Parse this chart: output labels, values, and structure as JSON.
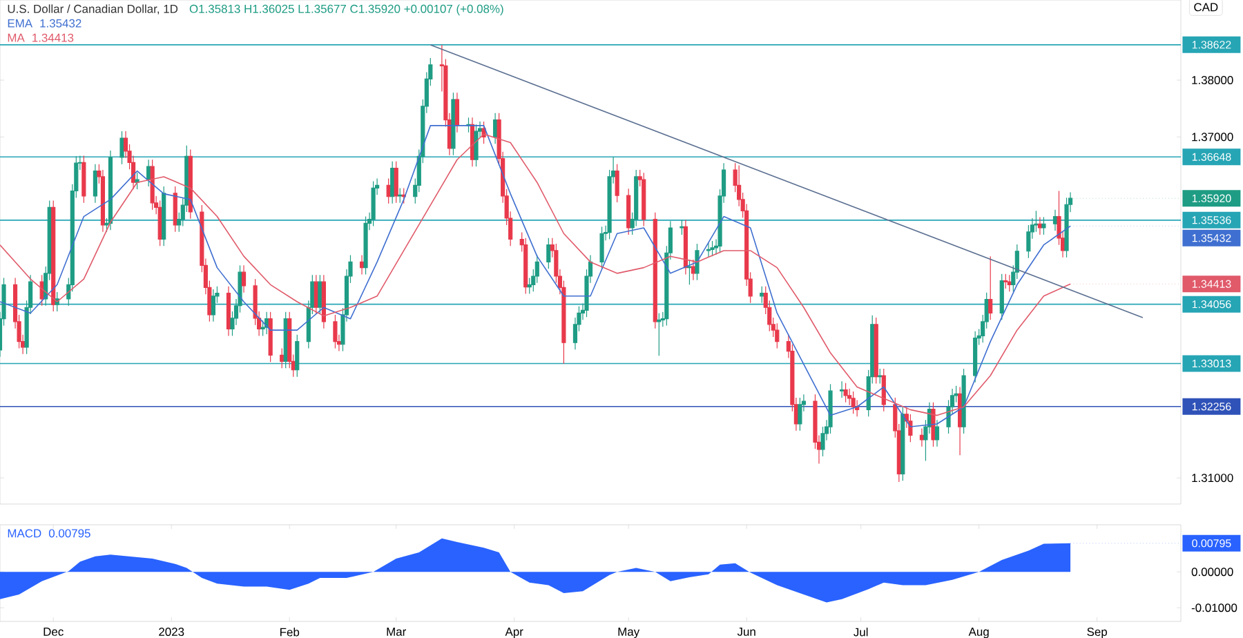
{
  "chart_data": [
    {
      "type": "candlestick",
      "title": "U.S. Dollar / Canadian Dollar, 1D",
      "subtitle": "O1.35813 H1.36025 L1.35677 C1.35920 +0.00107 (+0.08%)",
      "ylabel": "CAD",
      "legend": "top left",
      "tick_labels": "y",
      "xlim": [
        "2022-11-17",
        "2023-09-23"
      ],
      "ylim": [
        1.3054,
        1.3941
      ],
      "yticks": [
        {
          "value": 1.31,
          "label": "1.31000"
        },
        {
          "value": 1.37,
          "label": "1.37000"
        },
        {
          "value": 1.38,
          "label": "1.38000"
        }
      ],
      "x": [
        "2022-11-17",
        "2022-11-18",
        "2022-11-21",
        "2022-11-22",
        "2022-11-23",
        "2022-11-24",
        "2022-11-25",
        "2022-11-28",
        "2022-11-29",
        "2022-11-30",
        "2022-12-01",
        "2022-12-02",
        "2022-12-05",
        "2022-12-06",
        "2022-12-07",
        "2022-12-08",
        "2022-12-09",
        "2022-12-12",
        "2022-12-13",
        "2022-12-14",
        "2022-12-15",
        "2022-12-16",
        "2022-12-19",
        "2022-12-20",
        "2022-12-21",
        "2022-12-22",
        "2022-12-23",
        "2022-12-26",
        "2022-12-27",
        "2022-12-28",
        "2022-12-29",
        "2022-12-30",
        "2023-01-02",
        "2023-01-03",
        "2023-01-04",
        "2023-01-05",
        "2023-01-06",
        "2023-01-09",
        "2023-01-10",
        "2023-01-11",
        "2023-01-12",
        "2023-01-13",
        "2023-01-16",
        "2023-01-17",
        "2023-01-18",
        "2023-01-19",
        "2023-01-20",
        "2023-01-23",
        "2023-01-24",
        "2023-01-25",
        "2023-01-26",
        "2023-01-27",
        "2023-01-30",
        "2023-01-31",
        "2023-02-01",
        "2023-02-02",
        "2023-02-03",
        "2023-02-06",
        "2023-02-07",
        "2023-02-08",
        "2023-02-09",
        "2023-02-10",
        "2023-02-13",
        "2023-02-14",
        "2023-02-15",
        "2023-02-16",
        "2023-02-17",
        "2023-02-20",
        "2023-02-21",
        "2023-02-22",
        "2023-02-23",
        "2023-02-24",
        "2023-02-27",
        "2023-02-28",
        "2023-03-01",
        "2023-03-02",
        "2023-03-03",
        "2023-03-06",
        "2023-03-07",
        "2023-03-08",
        "2023-03-09",
        "2023-03-10",
        "2023-03-13",
        "2023-03-14",
        "2023-03-15",
        "2023-03-16",
        "2023-03-17",
        "2023-03-20",
        "2023-03-21",
        "2023-03-22",
        "2023-03-23",
        "2023-03-24",
        "2023-03-27",
        "2023-03-28",
        "2023-03-29",
        "2023-03-30",
        "2023-03-31",
        "2023-04-03",
        "2023-04-04",
        "2023-04-05",
        "2023-04-06",
        "2023-04-07",
        "2023-04-10",
        "2023-04-11",
        "2023-04-12",
        "2023-04-13",
        "2023-04-14",
        "2023-04-17",
        "2023-04-18",
        "2023-04-19",
        "2023-04-20",
        "2023-04-21",
        "2023-04-24",
        "2023-04-25",
        "2023-04-26",
        "2023-04-27",
        "2023-04-28",
        "2023-05-01",
        "2023-05-02",
        "2023-05-03",
        "2023-05-04",
        "2023-05-05",
        "2023-05-08",
        "2023-05-09",
        "2023-05-10",
        "2023-05-11",
        "2023-05-12",
        "2023-05-15",
        "2023-05-16",
        "2023-05-17",
        "2023-05-18",
        "2023-05-19",
        "2023-05-22",
        "2023-05-23",
        "2023-05-24",
        "2023-05-25",
        "2023-05-26",
        "2023-05-29",
        "2023-05-30",
        "2023-05-31",
        "2023-06-01",
        "2023-06-02",
        "2023-06-05",
        "2023-06-06",
        "2023-06-07",
        "2023-06-08",
        "2023-06-09",
        "2023-06-12",
        "2023-06-13",
        "2023-06-14",
        "2023-06-15",
        "2023-06-16",
        "2023-06-19",
        "2023-06-20",
        "2023-06-21",
        "2023-06-22",
        "2023-06-23",
        "2023-06-26",
        "2023-06-27",
        "2023-06-28",
        "2023-06-29",
        "2023-06-30",
        "2023-07-03",
        "2023-07-04",
        "2023-07-05",
        "2023-07-06",
        "2023-07-07",
        "2023-07-10",
        "2023-07-11",
        "2023-07-12",
        "2023-07-13",
        "2023-07-14",
        "2023-07-17",
        "2023-07-18",
        "2023-07-19",
        "2023-07-20",
        "2023-07-21",
        "2023-07-24",
        "2023-07-25",
        "2023-07-26",
        "2023-07-27",
        "2023-07-28",
        "2023-07-31",
        "2023-08-01",
        "2023-08-02",
        "2023-08-03",
        "2023-08-04",
        "2023-08-07",
        "2023-08-08",
        "2023-08-09",
        "2023-08-10",
        "2023-08-11",
        "2023-08-14",
        "2023-08-15",
        "2023-08-16",
        "2023-08-17",
        "2023-08-18",
        "2023-08-21",
        "2023-08-22",
        "2023-08-23",
        "2023-08-24",
        "2023-08-25"
      ],
      "ohlc": [
        [
          1.3325,
          1.3392,
          1.3313,
          1.338
        ],
        [
          1.338,
          1.3452,
          1.3368,
          1.344
        ],
        [
          1.344,
          1.3452,
          1.3363,
          1.3375
        ],
        [
          1.3375,
          1.3387,
          1.3328,
          1.334
        ],
        [
          1.334,
          1.3352,
          1.3318,
          1.333
        ],
        [
          1.333,
          1.3412,
          1.3318,
          1.34
        ],
        [
          1.34,
          1.3457,
          1.3388,
          1.3445
        ],
        [
          1.3445,
          1.3457,
          1.3403,
          1.3415
        ],
        [
          1.3415,
          1.3472,
          1.3403,
          1.346
        ],
        [
          1.346,
          1.3588,
          1.3448,
          1.3576
        ],
        [
          1.3576,
          1.3588,
          1.3393,
          1.3405
        ],
        [
          1.3405,
          1.3427,
          1.3393,
          1.3415
        ],
        [
          1.3415,
          1.3452,
          1.3403,
          1.344
        ],
        [
          1.344,
          1.3617,
          1.3428,
          1.3605
        ],
        [
          1.3605,
          1.3666,
          1.3593,
          1.3654
        ],
        [
          1.3654,
          1.3667,
          1.3642,
          1.3655
        ],
        [
          1.3655,
          1.3667,
          1.3584,
          1.3596
        ],
        [
          1.3596,
          1.3652,
          1.3584,
          1.364
        ],
        [
          1.364,
          1.3652,
          1.3618,
          1.363
        ],
        [
          1.363,
          1.3642,
          1.3533,
          1.3545
        ],
        [
          1.3545,
          1.3557,
          1.3533,
          1.3548
        ],
        [
          1.3548,
          1.3676,
          1.3536,
          1.3664
        ],
        [
          1.3664,
          1.371,
          1.3652,
          1.3698
        ],
        [
          1.3698,
          1.371,
          1.3663,
          1.3675
        ],
        [
          1.3675,
          1.3687,
          1.3643,
          1.3655
        ],
        [
          1.3655,
          1.3667,
          1.3608,
          1.362
        ],
        [
          1.362,
          1.3637,
          1.3608,
          1.3625
        ],
        [
          1.3625,
          1.366,
          1.3613,
          1.3648
        ],
        [
          1.3648,
          1.366,
          1.3572,
          1.3584
        ],
        [
          1.3584,
          1.3596,
          1.3564,
          1.3576
        ],
        [
          1.3576,
          1.3588,
          1.3508,
          1.352
        ],
        [
          1.352,
          1.3613,
          1.3508,
          1.3601
        ],
        [
          1.3601,
          1.3613,
          1.3533,
          1.3545
        ],
        [
          1.3545,
          1.3567,
          1.3533,
          1.3555
        ],
        [
          1.3555,
          1.3592,
          1.3543,
          1.358
        ],
        [
          1.358,
          1.3685,
          1.3568,
          1.3666
        ],
        [
          1.3666,
          1.3678,
          1.3556,
          1.3568
        ],
        [
          1.3568,
          1.358,
          1.3462,
          1.3474
        ],
        [
          1.3474,
          1.3486,
          1.3423,
          1.3435
        ],
        [
          1.3435,
          1.3447,
          1.3375,
          1.3387
        ],
        [
          1.3387,
          1.3432,
          1.3375,
          1.342
        ],
        [
          1.342,
          1.3437,
          1.3408,
          1.3425
        ],
        [
          1.3425,
          1.3437,
          1.335,
          1.3362
        ],
        [
          1.3362,
          1.3393,
          1.335,
          1.3381
        ],
        [
          1.3381,
          1.3415,
          1.3369,
          1.3403
        ],
        [
          1.3403,
          1.3474,
          1.3391,
          1.3462
        ],
        [
          1.3462,
          1.3474,
          1.3426,
          1.3438
        ],
        [
          1.3438,
          1.345,
          1.3369,
          1.3381
        ],
        [
          1.3381,
          1.3393,
          1.335,
          1.3362
        ],
        [
          1.3362,
          1.3377,
          1.335,
          1.3365
        ],
        [
          1.3365,
          1.3392,
          1.3353,
          1.338
        ],
        [
          1.338,
          1.3392,
          1.3304,
          1.3316
        ],
        [
          1.3316,
          1.3328,
          1.3293,
          1.3305
        ],
        [
          1.3305,
          1.3392,
          1.3293,
          1.338
        ],
        [
          1.338,
          1.3392,
          1.3293,
          1.3305
        ],
        [
          1.3305,
          1.3317,
          1.3278,
          1.329
        ],
        [
          1.329,
          1.3352,
          1.3278,
          1.334
        ],
        [
          1.334,
          1.3412,
          1.3328,
          1.34
        ],
        [
          1.34,
          1.3457,
          1.3388,
          1.3445
        ],
        [
          1.3445,
          1.3457,
          1.3388,
          1.34
        ],
        [
          1.34,
          1.3457,
          1.3388,
          1.3445
        ],
        [
          1.3445,
          1.3457,
          1.3363,
          1.3375
        ],
        [
          1.3375,
          1.3387,
          1.3328,
          1.334
        ],
        [
          1.334,
          1.3352,
          1.3323,
          1.3335
        ],
        [
          1.3335,
          1.3399,
          1.3323,
          1.3387
        ],
        [
          1.3387,
          1.3467,
          1.3375,
          1.3455
        ],
        [
          1.3455,
          1.3492,
          1.3443,
          1.348
        ],
        [
          1.348,
          1.3492,
          1.3458,
          1.347
        ],
        [
          1.347,
          1.356,
          1.3458,
          1.3548
        ],
        [
          1.3548,
          1.3567,
          1.3536,
          1.3555
        ],
        [
          1.3555,
          1.3622,
          1.3543,
          1.361
        ],
        [
          1.361,
          1.3627,
          1.3598,
          1.3615
        ],
        [
          1.3615,
          1.3627,
          1.3583,
          1.3595
        ],
        [
          1.3595,
          1.3657,
          1.3583,
          1.3645
        ],
        [
          1.3645,
          1.3657,
          1.3584,
          1.3596
        ],
        [
          1.3596,
          1.361,
          1.3584,
          1.3598
        ],
        [
          1.3598,
          1.361,
          1.3583,
          1.3595
        ],
        [
          1.3595,
          1.3627,
          1.3583,
          1.3615
        ],
        [
          1.3615,
          1.3678,
          1.3603,
          1.3666
        ],
        [
          1.3666,
          1.3766,
          1.3654,
          1.3754
        ],
        [
          1.3754,
          1.3814,
          1.3742,
          1.3802
        ],
        [
          1.3802,
          1.3839,
          1.379,
          1.3827
        ],
        [
          1.3827,
          1.3862,
          1.378,
          1.3825
        ],
        [
          1.3825,
          1.3837,
          1.3718,
          1.373
        ],
        [
          1.373,
          1.3742,
          1.3668,
          1.368
        ],
        [
          1.368,
          1.3778,
          1.3668,
          1.3766
        ],
        [
          1.3766,
          1.3778,
          1.3708,
          1.372
        ],
        [
          1.372,
          1.3734,
          1.3708,
          1.3722
        ],
        [
          1.3722,
          1.3734,
          1.3648,
          1.366
        ],
        [
          1.366,
          1.3722,
          1.3648,
          1.371
        ],
        [
          1.371,
          1.3727,
          1.3698,
          1.3715
        ],
        [
          1.3715,
          1.3727,
          1.3688,
          1.37
        ],
        [
          1.37,
          1.3742,
          1.3688,
          1.373
        ],
        [
          1.373,
          1.3742,
          1.365,
          1.3662
        ],
        [
          1.3662,
          1.3674,
          1.3584,
          1.3596
        ],
        [
          1.3596,
          1.3608,
          1.3545,
          1.3557
        ],
        [
          1.3557,
          1.3569,
          1.3508,
          1.352
        ],
        [
          1.352,
          1.3532,
          1.3498,
          1.351
        ],
        [
          1.351,
          1.3522,
          1.3424,
          1.3436
        ],
        [
          1.3436,
          1.3452,
          1.3424,
          1.344
        ],
        [
          1.344,
          1.3467,
          1.3428,
          1.3455
        ],
        [
          1.3455,
          1.3492,
          1.3443,
          1.348
        ],
        [
          1.348,
          1.3522,
          1.3468,
          1.351
        ],
        [
          1.351,
          1.3522,
          1.3488,
          1.35
        ],
        [
          1.35,
          1.3512,
          1.3443,
          1.3455
        ],
        [
          1.3455,
          1.3467,
          1.3423,
          1.3435
        ],
        [
          1.3435,
          1.3447,
          1.3301,
          1.3338
        ],
        [
          1.3338,
          1.3382,
          1.3326,
          1.337
        ],
        [
          1.337,
          1.3402,
          1.3358,
          1.339
        ],
        [
          1.339,
          1.3407,
          1.3378,
          1.3395
        ],
        [
          1.3395,
          1.3467,
          1.3383,
          1.3455
        ],
        [
          1.3455,
          1.3492,
          1.3443,
          1.348
        ],
        [
          1.348,
          1.3542,
          1.3468,
          1.353
        ],
        [
          1.353,
          1.3544,
          1.3518,
          1.3532
        ],
        [
          1.3532,
          1.3642,
          1.352,
          1.363
        ],
        [
          1.363,
          1.3665,
          1.3618,
          1.364
        ],
        [
          1.364,
          1.3652,
          1.3585,
          1.3597
        ],
        [
          1.3597,
          1.3609,
          1.3528,
          1.354
        ],
        [
          1.354,
          1.3567,
          1.3528,
          1.3555
        ],
        [
          1.3555,
          1.3642,
          1.3543,
          1.363
        ],
        [
          1.363,
          1.3642,
          1.3613,
          1.3625
        ],
        [
          1.3625,
          1.3637,
          1.3543,
          1.3555
        ],
        [
          1.3555,
          1.3567,
          1.3363,
          1.3375
        ],
        [
          1.3375,
          1.339,
          1.3315,
          1.3378
        ],
        [
          1.3378,
          1.3392,
          1.3366,
          1.338
        ],
        [
          1.338,
          1.3508,
          1.3368,
          1.3496
        ],
        [
          1.3496,
          1.3552,
          1.3484,
          1.354
        ],
        [
          1.354,
          1.3554,
          1.3528,
          1.3542
        ],
        [
          1.3542,
          1.3554,
          1.3458,
          1.347
        ],
        [
          1.347,
          1.3484,
          1.344,
          1.3472
        ],
        [
          1.3472,
          1.3484,
          1.3448,
          1.346
        ],
        [
          1.346,
          1.3512,
          1.3448,
          1.35
        ],
        [
          1.35,
          1.3514,
          1.3488,
          1.3502
        ],
        [
          1.3502,
          1.3517,
          1.349,
          1.3505
        ],
        [
          1.3505,
          1.352,
          1.3493,
          1.3508
        ],
        [
          1.3508,
          1.3608,
          1.3496,
          1.3596
        ],
        [
          1.3596,
          1.3654,
          1.3584,
          1.3642
        ],
        [
          1.3642,
          1.3654,
          1.3603,
          1.3615
        ],
        [
          1.3615,
          1.365,
          1.3578,
          1.359
        ],
        [
          1.359,
          1.3602,
          1.3558,
          1.357
        ],
        [
          1.357,
          1.3582,
          1.3438,
          1.345
        ],
        [
          1.345,
          1.3462,
          1.3408,
          1.342
        ],
        [
          1.342,
          1.3437,
          1.3408,
          1.3425
        ],
        [
          1.3425,
          1.3437,
          1.3388,
          1.34
        ],
        [
          1.34,
          1.3412,
          1.3358,
          1.337
        ],
        [
          1.337,
          1.3382,
          1.3348,
          1.336
        ],
        [
          1.336,
          1.3372,
          1.3328,
          1.334
        ],
        [
          1.334,
          1.3352,
          1.3311,
          1.3323
        ],
        [
          1.3323,
          1.3335,
          1.3217,
          1.3229
        ],
        [
          1.3229,
          1.3241,
          1.3183,
          1.3195
        ],
        [
          1.3195,
          1.3241,
          1.3183,
          1.3229
        ],
        [
          1.3229,
          1.3247,
          1.3217,
          1.3235
        ],
        [
          1.3235,
          1.3247,
          1.3151,
          1.3163
        ],
        [
          1.3163,
          1.3175,
          1.3125,
          1.315
        ],
        [
          1.315,
          1.319,
          1.3138,
          1.3178
        ],
        [
          1.3178,
          1.3202,
          1.3166,
          1.319
        ],
        [
          1.319,
          1.3265,
          1.3178,
          1.3253
        ],
        [
          1.3253,
          1.327,
          1.3241,
          1.3255
        ],
        [
          1.3255,
          1.3267,
          1.3233,
          1.3245
        ],
        [
          1.3245,
          1.3257,
          1.3228,
          1.324
        ],
        [
          1.324,
          1.3252,
          1.3213,
          1.3225
        ],
        [
          1.3225,
          1.3237,
          1.3208,
          1.322
        ],
        [
          1.322,
          1.329,
          1.3208,
          1.3278
        ],
        [
          1.3278,
          1.3386,
          1.3266,
          1.337
        ],
        [
          1.337,
          1.3382,
          1.3266,
          1.3278
        ],
        [
          1.3278,
          1.3292,
          1.3266,
          1.328
        ],
        [
          1.328,
          1.3292,
          1.3217,
          1.3229
        ],
        [
          1.3229,
          1.3241,
          1.3171,
          1.3183
        ],
        [
          1.3183,
          1.3195,
          1.3093,
          1.3107
        ],
        [
          1.3107,
          1.3224,
          1.3095,
          1.3212
        ],
        [
          1.3212,
          1.3224,
          1.3188,
          1.32
        ],
        [
          1.32,
          1.3212,
          1.3163,
          1.3175
        ],
        [
          1.3175,
          1.3187,
          1.3155,
          1.3167
        ],
        [
          1.3167,
          1.3202,
          1.313,
          1.319
        ],
        [
          1.319,
          1.3233,
          1.3178,
          1.3221
        ],
        [
          1.3221,
          1.3233,
          1.3155,
          1.3167
        ],
        [
          1.3167,
          1.3202,
          1.3155,
          1.319
        ],
        [
          1.319,
          1.3237,
          1.3178,
          1.3225
        ],
        [
          1.3225,
          1.3257,
          1.3213,
          1.3245
        ],
        [
          1.3245,
          1.3262,
          1.3233,
          1.3248
        ],
        [
          1.3248,
          1.326,
          1.314,
          1.319
        ],
        [
          1.319,
          1.3292,
          1.3178,
          1.328
        ],
        [
          1.328,
          1.3358,
          1.3268,
          1.3346
        ],
        [
          1.3346,
          1.3362,
          1.3334,
          1.335
        ],
        [
          1.335,
          1.3387,
          1.3338,
          1.3375
        ],
        [
          1.3375,
          1.3426,
          1.3363,
          1.3414
        ],
        [
          1.3414,
          1.349,
          1.3378,
          1.339
        ],
        [
          1.339,
          1.3459,
          1.3378,
          1.3447
        ],
        [
          1.3447,
          1.3459,
          1.3433,
          1.3445
        ],
        [
          1.3445,
          1.3457,
          1.3428,
          1.344
        ],
        [
          1.344,
          1.3474,
          1.3428,
          1.3462
        ],
        [
          1.3462,
          1.3511,
          1.345,
          1.3499
        ],
        [
          1.3499,
          1.3545,
          1.3487,
          1.3533
        ],
        [
          1.3533,
          1.3557,
          1.3521,
          1.3545
        ],
        [
          1.3545,
          1.357,
          1.3533,
          1.3547
        ],
        [
          1.3547,
          1.3559,
          1.3528,
          1.354
        ],
        [
          1.354,
          1.3559,
          1.3528,
          1.3547
        ],
        [
          1.3547,
          1.3572,
          1.3535,
          1.356
        ],
        [
          1.356,
          1.3605,
          1.351,
          1.3522
        ],
        [
          1.3522,
          1.3534,
          1.3488,
          1.35
        ],
        [
          1.35,
          1.3593,
          1.3488,
          1.3581
        ],
        [
          1.35813,
          1.36025,
          1.35677,
          1.3592
        ]
      ],
      "series": [
        {
          "type": "line",
          "name": "EMA",
          "color": "#3f6fd0",
          "x": [
            "2022-11-17",
            "2022-11-25",
            "2022-12-02",
            "2022-12-09",
            "2022-12-16",
            "2022-12-23",
            "2022-12-30",
            "2023-01-06",
            "2023-01-13",
            "2023-01-20",
            "2023-01-27",
            "2023-02-03",
            "2023-02-10",
            "2023-02-17",
            "2023-02-24",
            "2023-03-03",
            "2023-03-10",
            "2023-03-17",
            "2023-03-24",
            "2023-03-31",
            "2023-04-07",
            "2023-04-14",
            "2023-04-21",
            "2023-04-28",
            "2023-05-05",
            "2023-05-12",
            "2023-05-19",
            "2023-05-26",
            "2023-06-02",
            "2023-06-09",
            "2023-06-16",
            "2023-06-23",
            "2023-06-30",
            "2023-07-07",
            "2023-07-14",
            "2023-07-21",
            "2023-07-28",
            "2023-08-04",
            "2023-08-11",
            "2023-08-18",
            "2023-08-25"
          ],
          "values": [
            1.341,
            1.339,
            1.344,
            1.356,
            1.359,
            1.364,
            1.36,
            1.359,
            1.347,
            1.341,
            1.336,
            1.336,
            1.34,
            1.338,
            1.348,
            1.359,
            1.372,
            1.372,
            1.372,
            1.36,
            1.349,
            1.342,
            1.342,
            1.353,
            1.354,
            1.346,
            1.348,
            1.356,
            1.354,
            1.339,
            1.33,
            1.321,
            1.3225,
            1.326,
            1.319,
            1.3195,
            1.3225,
            1.334,
            1.344,
            1.351,
            1.35432
          ]
        },
        {
          "type": "line",
          "name": "MA",
          "color": "#e05a6a",
          "x": [
            "2022-11-17",
            "2022-11-25",
            "2022-12-02",
            "2022-12-09",
            "2022-12-16",
            "2022-12-23",
            "2022-12-30",
            "2023-01-06",
            "2023-01-13",
            "2023-01-20",
            "2023-01-27",
            "2023-02-03",
            "2023-02-10",
            "2023-02-17",
            "2023-02-24",
            "2023-03-03",
            "2023-03-10",
            "2023-03-17",
            "2023-03-24",
            "2023-03-31",
            "2023-04-07",
            "2023-04-14",
            "2023-04-21",
            "2023-04-28",
            "2023-05-05",
            "2023-05-12",
            "2023-05-19",
            "2023-05-26",
            "2023-06-02",
            "2023-06-09",
            "2023-06-16",
            "2023-06-23",
            "2023-06-30",
            "2023-07-07",
            "2023-07-14",
            "2023-07-21",
            "2023-07-28",
            "2023-08-04",
            "2023-08-11",
            "2023-08-18",
            "2023-08-25"
          ],
          "values": [
            1.351,
            1.345,
            1.341,
            1.345,
            1.355,
            1.362,
            1.363,
            1.361,
            1.356,
            1.349,
            1.344,
            1.341,
            1.3385,
            1.34,
            1.342,
            1.35,
            1.358,
            1.366,
            1.3705,
            1.369,
            1.362,
            1.353,
            1.348,
            1.346,
            1.347,
            1.349,
            1.348,
            1.35,
            1.35,
            1.347,
            1.34,
            1.332,
            1.326,
            1.324,
            1.322,
            1.321,
            1.3225,
            1.328,
            1.336,
            1.342,
            1.34413
          ]
        },
        {
          "type": "line",
          "color": "#5b6f91",
          "x": [
            "2023-03-10",
            "2023-09-13"
          ],
          "values": [
            1.3862,
            1.3382
          ]
        }
      ],
      "ref_lines": [
        {
          "axis": "y",
          "value": 1.38622,
          "label": "1.38622",
          "color": "#26a5b5"
        },
        {
          "axis": "y",
          "value": 1.36648,
          "label": "1.36648",
          "color": "#26a5b5"
        },
        {
          "axis": "y",
          "value": 1.35536,
          "label": "1.35536",
          "color": "#26a5b5"
        },
        {
          "axis": "y",
          "value": 1.34056,
          "label": "1.34056",
          "color": "#26a5b5"
        },
        {
          "axis": "y",
          "value": 1.33013,
          "label": "1.33013",
          "color": "#26a5b5"
        },
        {
          "axis": "y",
          "value": 1.32256,
          "label": "1.32256",
          "color": "#2f52b8"
        }
      ],
      "annotations": [
        {
          "text": "1.35920",
          "x": "2023-08-25",
          "y": 1.3592
        },
        {
          "text": "1.35432",
          "x": "2023-08-25",
          "y": 1.35432
        },
        {
          "text": "1.34413",
          "x": "2023-08-25",
          "y": 1.34413
        }
      ]
    },
    {
      "type": "area",
      "legend": "top left",
      "xlim": [
        "2022-11-17",
        "2023-09-23"
      ],
      "ylim": [
        -0.0138,
        0.0131
      ],
      "xticks": [
        {
          "value": "2022-12-01",
          "label": "Dec"
        },
        {
          "value": "2023-01-01",
          "label": "2023"
        },
        {
          "value": "2023-02-01",
          "label": "Feb"
        },
        {
          "value": "2023-03-01",
          "label": "Mar"
        },
        {
          "value": "2023-04-01",
          "label": "Apr"
        },
        {
          "value": "2023-05-01",
          "label": "May"
        },
        {
          "value": "2023-06-01",
          "label": "Jun"
        },
        {
          "value": "2023-07-01",
          "label": "Jul"
        },
        {
          "value": "2023-08-01",
          "label": "Aug"
        },
        {
          "value": "2023-09-01",
          "label": "Sep"
        }
      ],
      "yticks": [
        {
          "value": 0,
          "label": "0.00000"
        },
        {
          "value": -0.01,
          "label": "-0.01000"
        }
      ],
      "annotations": [
        {
          "text": "0.00795",
          "x": "2023-08-25",
          "y": 0.00795
        }
      ],
      "series": [
        {
          "name": "MACD",
          "color": "#2962ff",
          "x": [
            "2022-11-17",
            "2022-11-22",
            "2022-11-28",
            "2022-12-05",
            "2022-12-08",
            "2022-12-12",
            "2022-12-16",
            "2022-12-27",
            "2023-01-02",
            "2023-01-05",
            "2023-01-09",
            "2023-01-13",
            "2023-01-20",
            "2023-01-26",
            "2023-02-01",
            "2023-02-06",
            "2023-02-09",
            "2023-02-16",
            "2023-02-23",
            "2023-03-01",
            "2023-03-07",
            "2023-03-13",
            "2023-03-17",
            "2023-03-24",
            "2023-03-28",
            "2023-03-31",
            "2023-04-05",
            "2023-04-10",
            "2023-04-14",
            "2023-04-19",
            "2023-04-26",
            "2023-04-28",
            "2023-05-03",
            "2023-05-08",
            "2023-05-12",
            "2023-05-17",
            "2023-05-22",
            "2023-05-25",
            "2023-05-29",
            "2023-06-02",
            "2023-06-09",
            "2023-06-16",
            "2023-06-22",
            "2023-06-26",
            "2023-07-03",
            "2023-07-07",
            "2023-07-12",
            "2023-07-18",
            "2023-07-25",
            "2023-08-01",
            "2023-08-07",
            "2023-08-14",
            "2023-08-18",
            "2023-08-25"
          ],
          "values": [
            -0.0076,
            -0.0063,
            -0.0026,
            0.0002,
            0.0028,
            0.0043,
            0.0048,
            0.0037,
            0.0022,
            0.0011,
            -0.0017,
            -0.0033,
            -0.0041,
            -0.0041,
            -0.005,
            -0.0033,
            -0.0017,
            -0.0017,
            0.0,
            0.0037,
            0.0054,
            0.0093,
            0.0083,
            0.0067,
            0.0054,
            0.0,
            -0.003,
            -0.0037,
            -0.0059,
            -0.0054,
            -0.0009,
            0.0,
            0.0011,
            0.0,
            -0.0026,
            -0.0015,
            -0.0007,
            0.002,
            0.0024,
            -0.0002,
            -0.0037,
            -0.0063,
            -0.0085,
            -0.0076,
            -0.0048,
            -0.003,
            -0.0037,
            -0.0037,
            -0.0022,
            0.0,
            0.0033,
            0.0059,
            0.0078,
            0.00795
          ]
        }
      ]
    }
  ]
}
